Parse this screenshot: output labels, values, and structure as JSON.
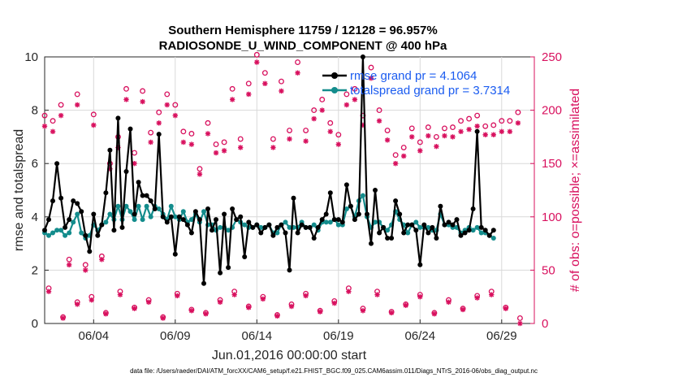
{
  "chart_data": {
    "type": "line",
    "title": "Southern Hemisphere 11759 / 12128 = 96.957%",
    "subtitle": "RADIOSONDE_U_WIND_COMPONENT @ 400 hPa",
    "xlabel": "Jun.01,2016 00:00:00 start",
    "ylabel": "rmse and totalspread",
    "y2label": "# of obs: o=possible; ×=assimilated",
    "ylim": [
      0,
      10
    ],
    "y2lim": [
      0,
      250
    ],
    "xlim": [
      1.0,
      31.0
    ],
    "yticks": [
      "0",
      "2",
      "4",
      "6",
      "8",
      "10"
    ],
    "y2ticks": [
      "0",
      "50",
      "100",
      "150",
      "200",
      "250"
    ],
    "xticks": [
      {
        "value": 4,
        "label": "06/04"
      },
      {
        "value": 9,
        "label": "06/09"
      },
      {
        "value": 14,
        "label": "06/14"
      },
      {
        "value": 19,
        "label": "06/19"
      },
      {
        "value": 24,
        "label": "06/24"
      },
      {
        "value": 29,
        "label": "06/29"
      }
    ],
    "footer": "data file: /Users/raeder/DAI/ATM_forcXX/CAM6_setup/f.e21.FHIST_BGC.f09_025.CAM6assim.011/Diags_NTrS_2016-06/obs_diag_output.nc",
    "x_start": 1.0,
    "x_step": 0.25,
    "series": [
      {
        "name": "rmse",
        "legend": "rmse grand pr = 4.1064",
        "color": "#000000",
        "values": [
          3.5,
          3.9,
          4.6,
          6.0,
          4.7,
          3.6,
          3.9,
          4.6,
          4.5,
          4.2,
          3.3,
          2.7,
          4.1,
          3.3,
          3.7,
          4.9,
          6.5,
          3.5,
          7.7,
          3.6,
          5.7,
          7.3,
          4.1,
          5.3,
          4.8,
          4.8,
          4.6,
          4.3,
          7.1,
          4.0,
          3.8,
          4.0,
          2.6,
          4.0,
          3.9,
          3.7,
          3.4,
          4.2,
          3.9,
          1.5,
          4.3,
          3.5,
          3.9,
          1.9,
          4.1,
          2.1,
          4.3,
          3.9,
          4.0,
          2.5,
          3.8,
          3.6,
          3.7,
          3.4,
          3.6,
          3.7,
          3.3,
          3.6,
          3.7,
          3.4,
          2.0,
          4.7,
          3.4,
          3.7,
          3.6,
          3.6,
          3.2,
          3.6,
          3.9,
          4.1,
          4.9,
          3.9,
          3.9,
          3.8,
          5.2,
          4.4,
          3.9,
          4.1,
          10.0,
          4.1,
          3.0,
          5.0,
          3.4,
          3.6,
          3.2,
          3.2,
          4.6,
          4.1,
          3.4,
          3.7,
          3.7,
          3.5,
          2.2,
          3.7,
          3.4,
          3.6,
          3.2,
          4.4,
          3.7,
          3.8,
          3.7,
          3.9,
          3.3,
          3.4,
          3.5,
          4.3,
          7.2,
          3.6,
          3.5,
          3.3,
          3.5
        ]
      },
      {
        "name": "totalspread",
        "legend": "totalspread grand pr = 3.7314",
        "color": "#138c8c",
        "values": [
          3.4,
          3.3,
          3.4,
          3.5,
          3.5,
          3.3,
          3.4,
          3.8,
          4.1,
          3.4,
          3.2,
          3.3,
          3.7,
          3.5,
          3.7,
          3.8,
          4.1,
          3.9,
          4.4,
          3.9,
          4.4,
          4.2,
          3.9,
          4.4,
          3.9,
          4.4,
          4.0,
          4.4,
          4.3,
          4.1,
          3.9,
          4.4,
          4.0,
          3.9,
          4.2,
          3.8,
          3.9,
          4.1,
          3.8,
          4.2,
          3.7,
          3.7,
          3.5,
          3.6,
          3.6,
          3.5,
          3.6,
          3.9,
          3.8,
          3.7,
          3.6,
          3.6,
          3.7,
          3.6,
          3.6,
          3.7,
          3.4,
          3.4,
          3.7,
          3.8,
          3.6,
          3.6,
          3.6,
          3.8,
          3.6,
          3.6,
          3.7,
          3.5,
          3.8,
          3.8,
          3.8,
          3.9,
          3.7,
          3.7,
          4.3,
          4.4,
          4.0,
          4.6,
          4.8,
          4.0,
          3.6,
          3.8,
          3.8,
          3.6,
          3.5,
          3.7,
          4.2,
          3.9,
          3.7,
          3.4,
          3.7,
          3.8,
          3.6,
          3.6,
          3.6,
          3.5,
          3.5,
          4.1,
          3.7,
          3.7,
          3.6,
          3.6,
          3.4,
          3.5,
          3.6,
          3.5,
          3.6,
          3.4,
          3.4,
          3.3,
          3.2
        ]
      }
    ],
    "obs_possible_peaks": [
      195,
      190,
      205,
      60,
      215,
      55,
      196,
      63,
      150,
      175,
      220,
      160,
      218,
      179,
      198,
      215,
      205,
      180,
      178,
      145,
      188,
      168,
      170,
      220,
      173,
      225,
      252,
      235,
      173,
      227,
      181,
      245,
      181,
      200,
      210,
      188,
      177,
      215,
      220,
      195,
      240,
      200,
      181,
      158,
      165,
      183,
      170,
      184,
      175,
      183,
      184,
      190,
      192,
      195,
      185,
      186,
      190,
      190,
      198
    ],
    "obs_assimilated_peaks": [
      185,
      180,
      195,
      55,
      205,
      50,
      186,
      60,
      145,
      165,
      210,
      150,
      208,
      170,
      188,
      205,
      195,
      170,
      168,
      140,
      178,
      160,
      162,
      210,
      165,
      215,
      245,
      225,
      165,
      218,
      173,
      235,
      171,
      192,
      200,
      180,
      168,
      205,
      210,
      186,
      230,
      190,
      172,
      150,
      157,
      175,
      162,
      176,
      166,
      176,
      175,
      180,
      182,
      185,
      177,
      177,
      180,
      180,
      188
    ],
    "obs_possible_troughs": [
      33,
      6,
      20,
      25,
      10,
      30,
      15,
      22,
      6,
      28,
      13,
      10,
      22,
      30,
      16,
      25,
      8,
      18,
      28,
      12,
      21,
      33,
      14,
      30,
      11,
      18,
      27,
      10,
      22,
      14,
      26,
      30,
      15,
      5
    ],
    "obs_assimilated_troughs": [
      30,
      5,
      18,
      22,
      9,
      27,
      14,
      20,
      5,
      26,
      12,
      9,
      20,
      27,
      15,
      23,
      7,
      16,
      26,
      11,
      19,
      30,
      12,
      27,
      10,
      17,
      25,
      9,
      20,
      13,
      24,
      27,
      14,
      0
    ],
    "obs_peak_x_start": 1.0,
    "obs_peak_x_step": 0.5,
    "obs_trough_x_start": 1.25,
    "obs_trough_x_step": 0.875,
    "obs_color": "#d8105e"
  }
}
